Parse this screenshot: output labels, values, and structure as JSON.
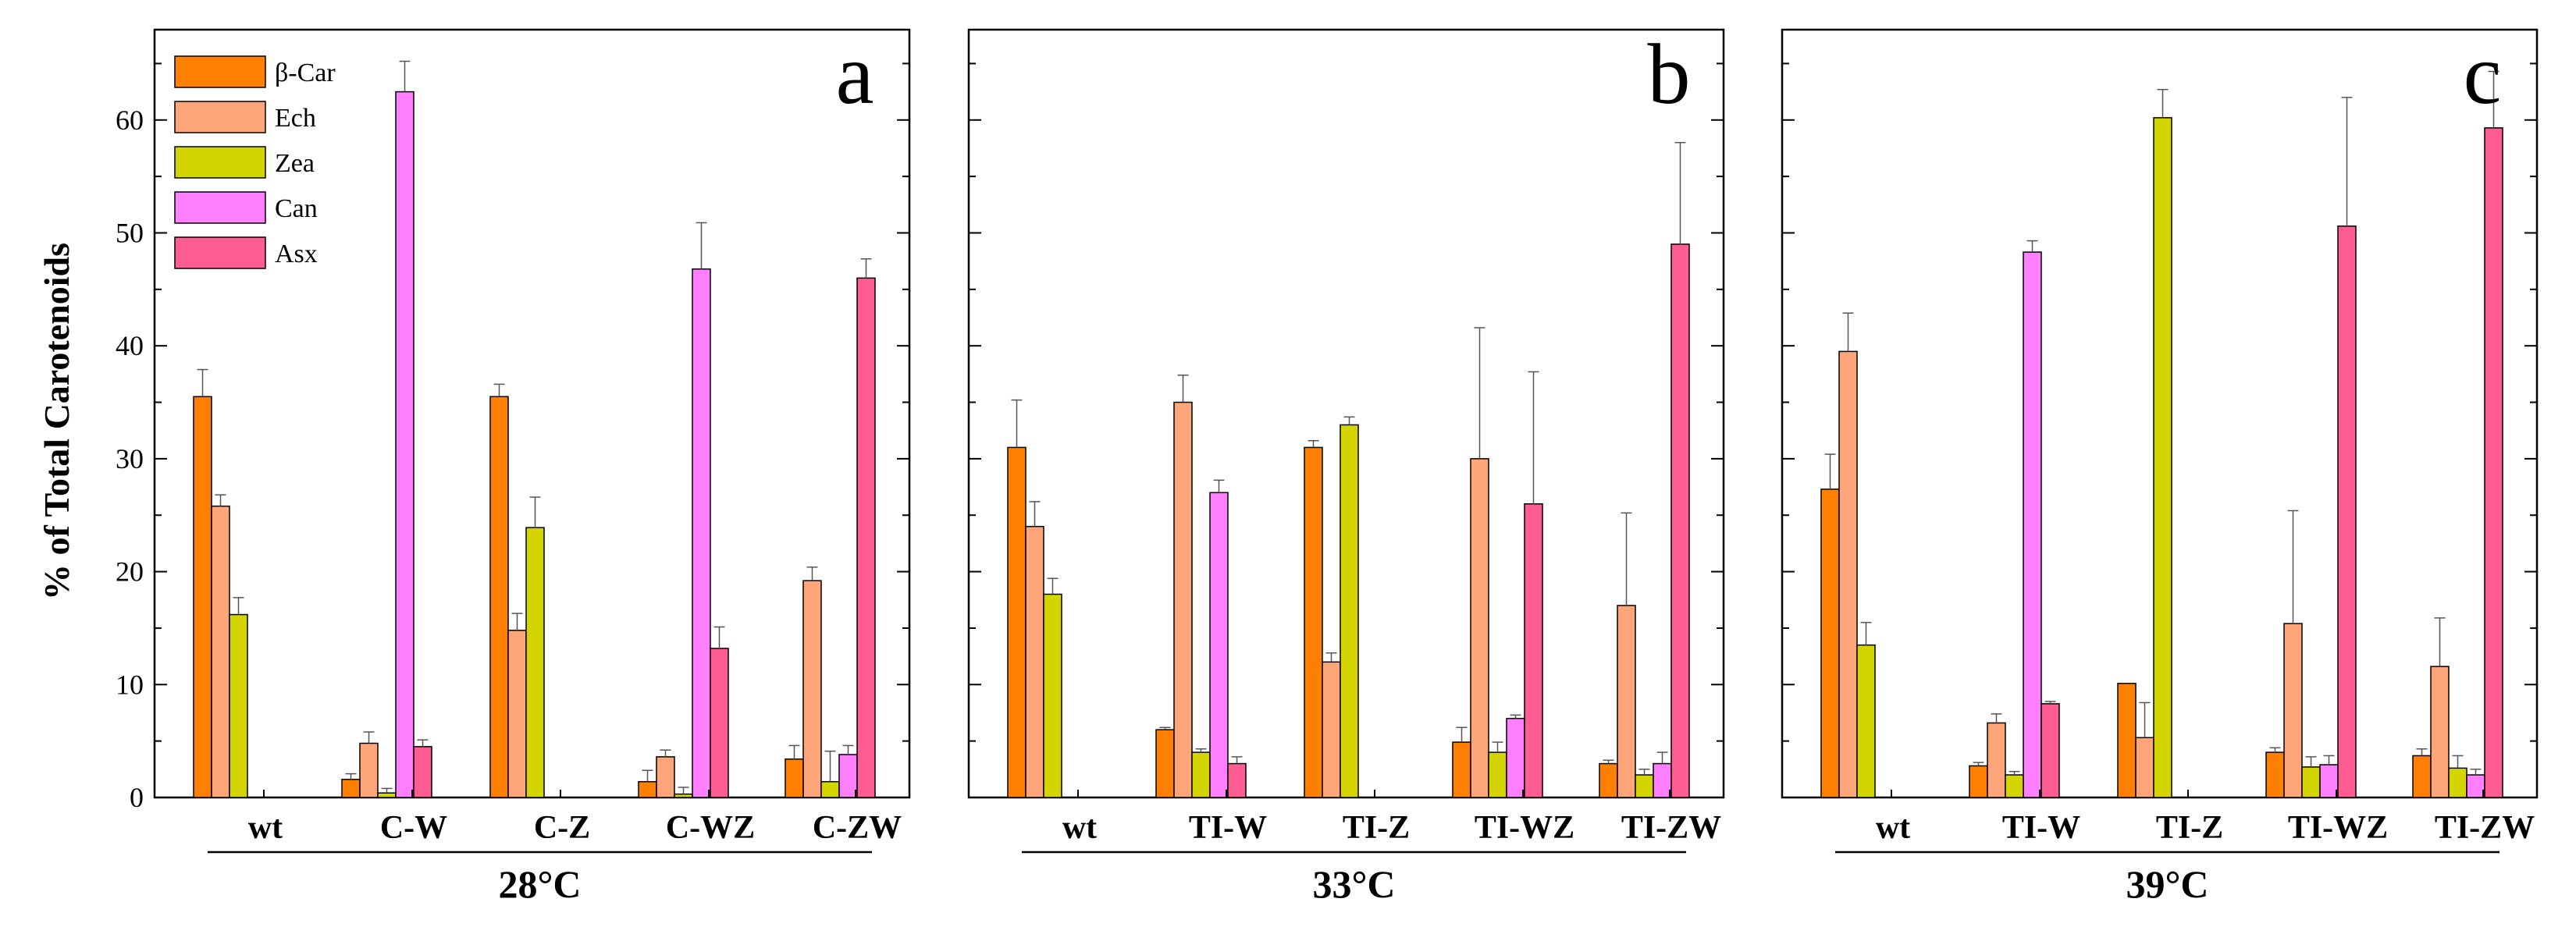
{
  "chart_data": {
    "type": "bar",
    "ylabel": "% of Total Carotenoids",
    "ylim": [
      0,
      68
    ],
    "yticks": [
      0,
      10,
      20,
      30,
      40,
      50,
      60
    ],
    "ytick_labels": [
      "0",
      "10",
      "20",
      "30",
      "40",
      "50",
      "60"
    ],
    "legend": [
      {
        "name": "β-Car",
        "color": "#FF7F00"
      },
      {
        "name": "Ech",
        "color": "#FFA57A"
      },
      {
        "name": "Zea",
        "color": "#D4D400"
      },
      {
        "name": "Can",
        "color": "#FF80FF"
      },
      {
        "name": "Asx",
        "color": "#FF5C93"
      }
    ],
    "panels": [
      {
        "letter": "a",
        "group_label": "28°C",
        "categories": [
          "wt",
          "C-W",
          "C-Z",
          "C-WZ",
          "C-ZW"
        ],
        "series": [
          {
            "name": "β-Car",
            "values": [
              35.5,
              1.6,
              35.5,
              1.4,
              3.4
            ],
            "errors": [
              2.4,
              0.5,
              1.1,
              1.0,
              1.2
            ]
          },
          {
            "name": "Ech",
            "values": [
              25.8,
              4.8,
              14.8,
              3.6,
              19.2
            ],
            "errors": [
              1.0,
              1.0,
              1.5,
              0.6,
              1.2
            ]
          },
          {
            "name": "Zea",
            "values": [
              16.2,
              0.4,
              23.9,
              0.3,
              1.4
            ],
            "errors": [
              1.5,
              0.4,
              2.7,
              0.6,
              2.7
            ]
          },
          {
            "name": "Can",
            "values": [
              0,
              62.5,
              0,
              46.8,
              3.8
            ],
            "errors": [
              0,
              2.7,
              0,
              4.1,
              0.8
            ]
          },
          {
            "name": "Asx",
            "values": [
              0,
              4.5,
              0,
              13.2,
              46.0
            ],
            "errors": [
              0,
              0.6,
              0,
              1.9,
              1.7
            ]
          }
        ]
      },
      {
        "letter": "b",
        "group_label": "33°C",
        "categories": [
          "wt",
          "TI-W",
          "TI-Z",
          "TI-WZ",
          "TI-ZW"
        ],
        "series": [
          {
            "name": "β-Car",
            "values": [
              31.0,
              6.0,
              31.0,
              4.9,
              3.0
            ],
            "errors": [
              4.2,
              0.2,
              0.6,
              1.3,
              0.3
            ]
          },
          {
            "name": "Ech",
            "values": [
              24.0,
              35.0,
              12.0,
              30.0,
              17.0
            ],
            "errors": [
              2.2,
              2.4,
              0.8,
              11.6,
              8.2
            ]
          },
          {
            "name": "Zea",
            "values": [
              18.0,
              4.0,
              33.0,
              4.0,
              2.0
            ],
            "errors": [
              1.4,
              0.3,
              0.7,
              0.9,
              0.5
            ]
          },
          {
            "name": "Can",
            "values": [
              0,
              27.0,
              0,
              7.0,
              3.0
            ],
            "errors": [
              0,
              1.1,
              0,
              0.3,
              1.0
            ]
          },
          {
            "name": "Asx",
            "values": [
              0,
              3.0,
              0,
              26.0,
              49.0
            ],
            "errors": [
              0,
              0.6,
              0,
              11.7,
              9.0
            ]
          }
        ]
      },
      {
        "letter": "c",
        "group_label": "39°C",
        "categories": [
          "wt",
          "TI-W",
          "TI-Z",
          "TI-WZ",
          "TI-ZW"
        ],
        "series": [
          {
            "name": "β-Car",
            "values": [
              27.3,
              2.8,
              10.1,
              4.0,
              3.7
            ],
            "errors": [
              3.1,
              0.3,
              0,
              0.4,
              0.6
            ]
          },
          {
            "name": "Ech",
            "values": [
              39.5,
              6.6,
              5.3,
              15.4,
              11.6
            ],
            "errors": [
              3.4,
              0.8,
              3.1,
              10.0,
              4.3
            ]
          },
          {
            "name": "Zea",
            "values": [
              13.5,
              2.0,
              60.2,
              2.7,
              2.6
            ],
            "errors": [
              2.0,
              0.3,
              2.5,
              0.9,
              1.1
            ]
          },
          {
            "name": "Can",
            "values": [
              0,
              48.3,
              0,
              2.9,
              2.0
            ],
            "errors": [
              0,
              1.0,
              0,
              0.8,
              0.5
            ]
          },
          {
            "name": "Asx",
            "values": [
              0,
              8.3,
              0,
              50.6,
              59.3
            ],
            "errors": [
              0,
              0.2,
              0,
              11.4,
              5.0
            ]
          }
        ]
      }
    ]
  }
}
